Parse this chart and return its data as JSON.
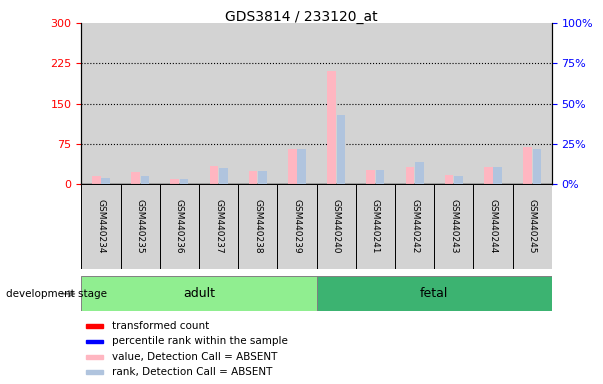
{
  "title": "GDS3814 / 233120_at",
  "samples": [
    "GSM440234",
    "GSM440235",
    "GSM440236",
    "GSM440237",
    "GSM440238",
    "GSM440239",
    "GSM440240",
    "GSM440241",
    "GSM440242",
    "GSM440243",
    "GSM440244",
    "GSM440245"
  ],
  "adult_count": 6,
  "fetal_count": 6,
  "transformed_count": [
    15,
    22,
    10,
    35,
    25,
    65,
    210,
    27,
    32,
    18,
    33,
    70
  ],
  "percentile_rank": [
    4,
    5,
    3,
    10,
    8,
    22,
    43,
    9,
    14,
    5,
    11,
    22
  ],
  "detection_call": [
    "ABSENT",
    "ABSENT",
    "ABSENT",
    "ABSENT",
    "ABSENT",
    "ABSENT",
    "ABSENT",
    "ABSENT",
    "ABSENT",
    "ABSENT",
    "ABSENT",
    "ABSENT"
  ],
  "left_ylim": [
    0,
    300
  ],
  "right_ylim": [
    0,
    100
  ],
  "left_yticks": [
    0,
    75,
    150,
    225,
    300
  ],
  "right_yticks": [
    0,
    25,
    50,
    75,
    100
  ],
  "right_ytick_labels": [
    "0%",
    "25%",
    "50%",
    "75%",
    "100%"
  ],
  "absent_value_color": "#FFB6C1",
  "absent_rank_color": "#B0C4DE",
  "present_value_color": "#FF0000",
  "present_rank_color": "#0000FF",
  "col_bg_color": "#d3d3d3",
  "adult_bg": "#90EE90",
  "fetal_bg": "#3CB371",
  "label_color_left": "#FF0000",
  "label_color_right": "#0000FF",
  "dotted_lines": [
    75,
    150,
    225
  ],
  "legend_items": [
    {
      "label": "transformed count",
      "color": "#FF0000"
    },
    {
      "label": "percentile rank within the sample",
      "color": "#0000FF"
    },
    {
      "label": "value, Detection Call = ABSENT",
      "color": "#FFB6C1"
    },
    {
      "label": "rank, Detection Call = ABSENT",
      "color": "#B0C4DE"
    }
  ]
}
